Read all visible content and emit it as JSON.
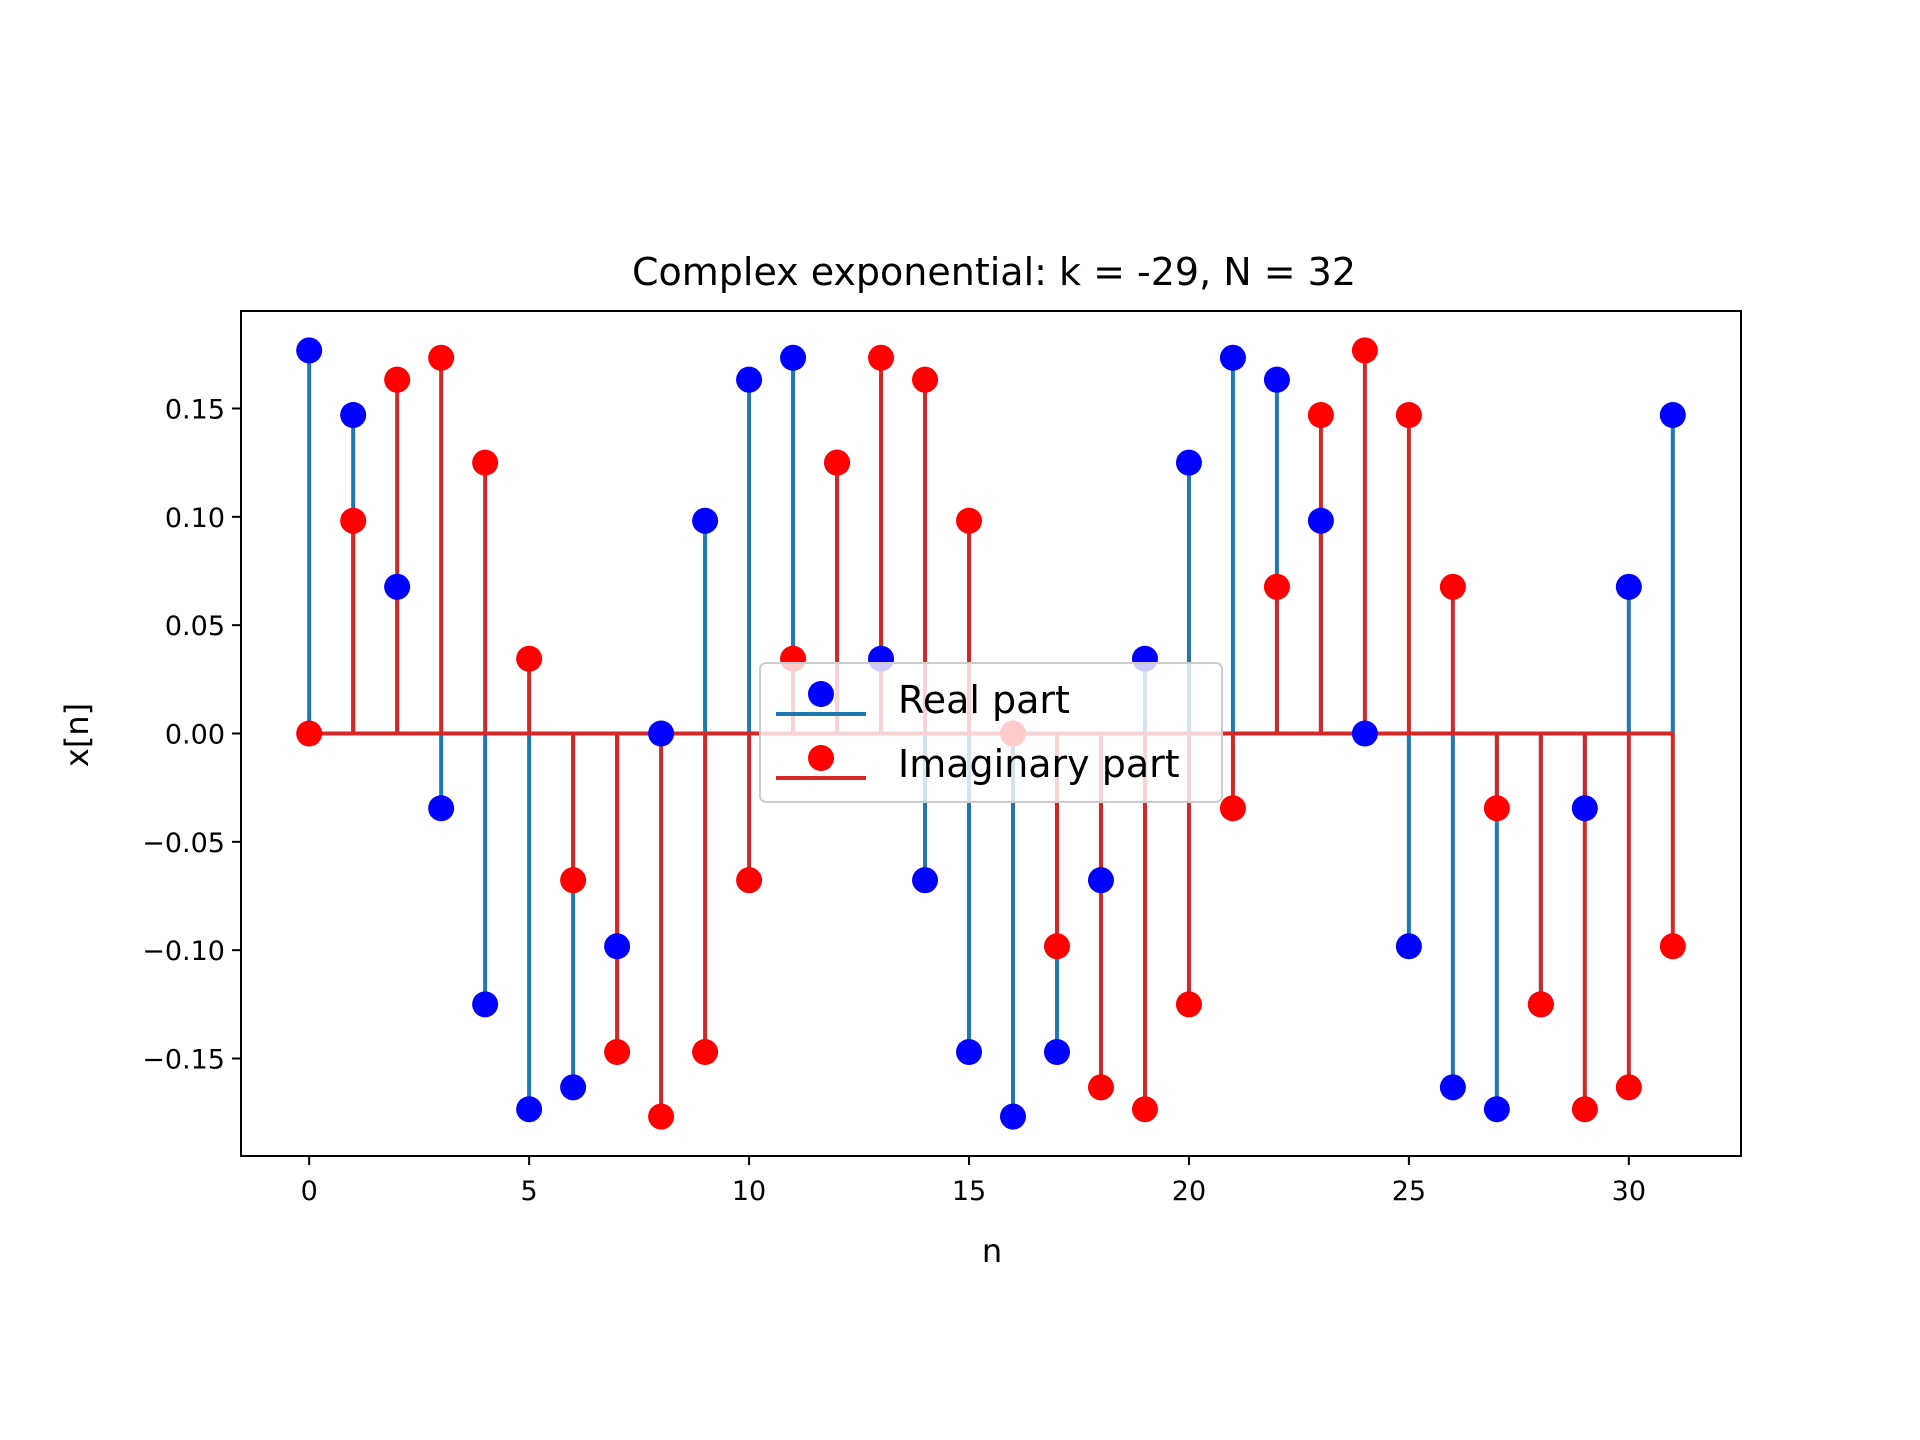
{
  "chart_data": {
    "type": "stem",
    "title": "Complex exponential: k = -29, N = 32",
    "xlabel": "n",
    "ylabel": "x[n]",
    "xlim": [
      -1.55,
      32.55
    ],
    "ylim": [
      -0.195,
      0.195
    ],
    "xticks": [
      0,
      5,
      10,
      15,
      20,
      25,
      30
    ],
    "xtick_labels": [
      "0",
      "5",
      "10",
      "15",
      "20",
      "25",
      "30"
    ],
    "yticks": [
      -0.15,
      -0.1,
      -0.05,
      0,
      0.05,
      0.1,
      0.15
    ],
    "ytick_labels": [
      "−0.15",
      "−0.10",
      "−0.05",
      "0.00",
      "0.05",
      "0.10",
      "0.15"
    ],
    "grid": false,
    "legend_position": "center",
    "x": [
      0,
      1,
      2,
      3,
      4,
      5,
      6,
      7,
      8,
      9,
      10,
      11,
      12,
      13,
      14,
      15,
      16,
      17,
      18,
      19,
      20,
      21,
      22,
      23,
      24,
      25,
      26,
      27,
      28,
      29,
      30,
      31
    ],
    "series": [
      {
        "name": "Real part",
        "stem_color": "#1f77b4",
        "marker_color": "#0000ff",
        "values": [
          0.1768,
          0.147,
          0.0677,
          -0.0345,
          -0.125,
          -0.1734,
          -0.1633,
          -0.0982,
          0.0,
          0.0982,
          0.1633,
          0.1734,
          0.125,
          0.0345,
          -0.0677,
          -0.147,
          -0.1768,
          -0.147,
          -0.0677,
          0.0345,
          0.125,
          0.1734,
          0.1633,
          0.0982,
          0.0,
          -0.0982,
          -0.1633,
          -0.1734,
          -0.125,
          -0.0345,
          0.0677,
          0.147
        ]
      },
      {
        "name": "Imaginary part",
        "stem_color": "#d62728",
        "marker_color": "#ff0000",
        "values": [
          0.0,
          0.0982,
          0.1633,
          0.1734,
          0.125,
          0.0345,
          -0.0677,
          -0.147,
          -0.1768,
          -0.147,
          -0.0677,
          0.0345,
          0.125,
          0.1734,
          0.1633,
          0.0982,
          0.0,
          -0.0982,
          -0.1633,
          -0.1734,
          -0.125,
          -0.0345,
          0.0677,
          0.147,
          0.1768,
          0.147,
          0.0677,
          -0.0345,
          -0.125,
          -0.1734,
          -0.1633,
          -0.0982
        ]
      }
    ],
    "baseline_color": "#d62728"
  }
}
